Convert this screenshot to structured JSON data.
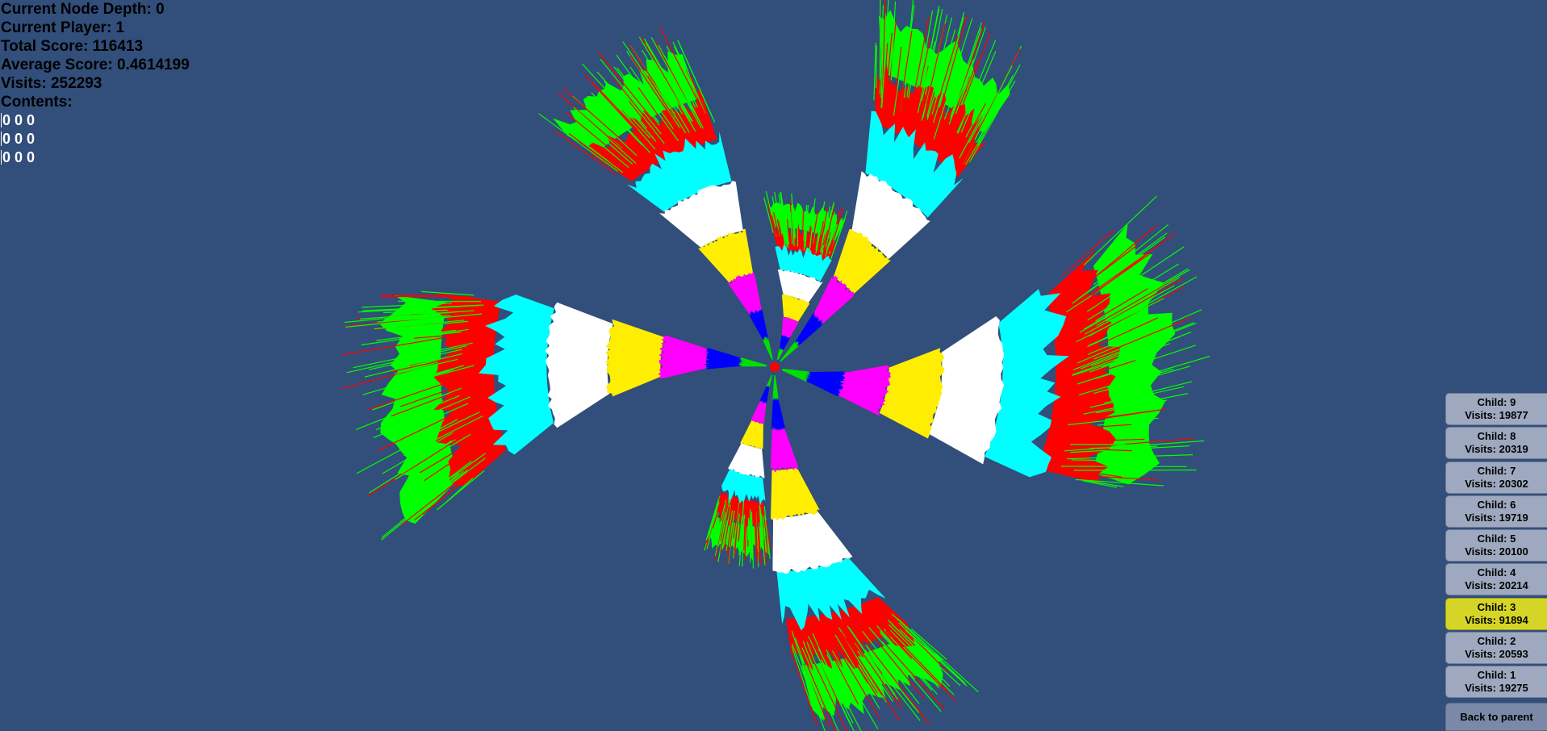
{
  "info": {
    "depth": "Current Node Depth: 0",
    "player": "Current Player: 1",
    "total_score": "Total Score: 116413",
    "average_score": "Average Score: 0.4614199",
    "visits": "Visits: 252293",
    "contents_label": "Contents:",
    "contents": [
      "0 0 0",
      "0 0 0",
      "0 0 0"
    ]
  },
  "children": [
    {
      "child": "Child: 9",
      "visits": "Visits: 19877",
      "selected": false
    },
    {
      "child": "Child: 8",
      "visits": "Visits: 20319",
      "selected": false
    },
    {
      "child": "Child: 7",
      "visits": "Visits: 20302",
      "selected": false
    },
    {
      "child": "Child: 6",
      "visits": "Visits: 19719",
      "selected": false
    },
    {
      "child": "Child: 5",
      "visits": "Visits: 20100",
      "selected": false
    },
    {
      "child": "Child: 4",
      "visits": "Visits: 20214",
      "selected": false
    },
    {
      "child": "Child: 3",
      "visits": "Visits: 91894",
      "selected": true
    },
    {
      "child": "Child: 2",
      "visits": "Visits: 20593",
      "selected": false
    },
    {
      "child": "Child: 1",
      "visits": "Visits: 19275",
      "selected": false
    }
  ],
  "back_label": "Back to parent",
  "colors": {
    "background": "#324e7a",
    "selected_button": "#d5d527",
    "button": "#9ea9c0",
    "depth_bands": [
      "#00e000",
      "#0000ff",
      "#ff00ff",
      "#ffee00",
      "#ffffff",
      "#00ffff",
      "#ff0000",
      "#00ff00"
    ]
  }
}
